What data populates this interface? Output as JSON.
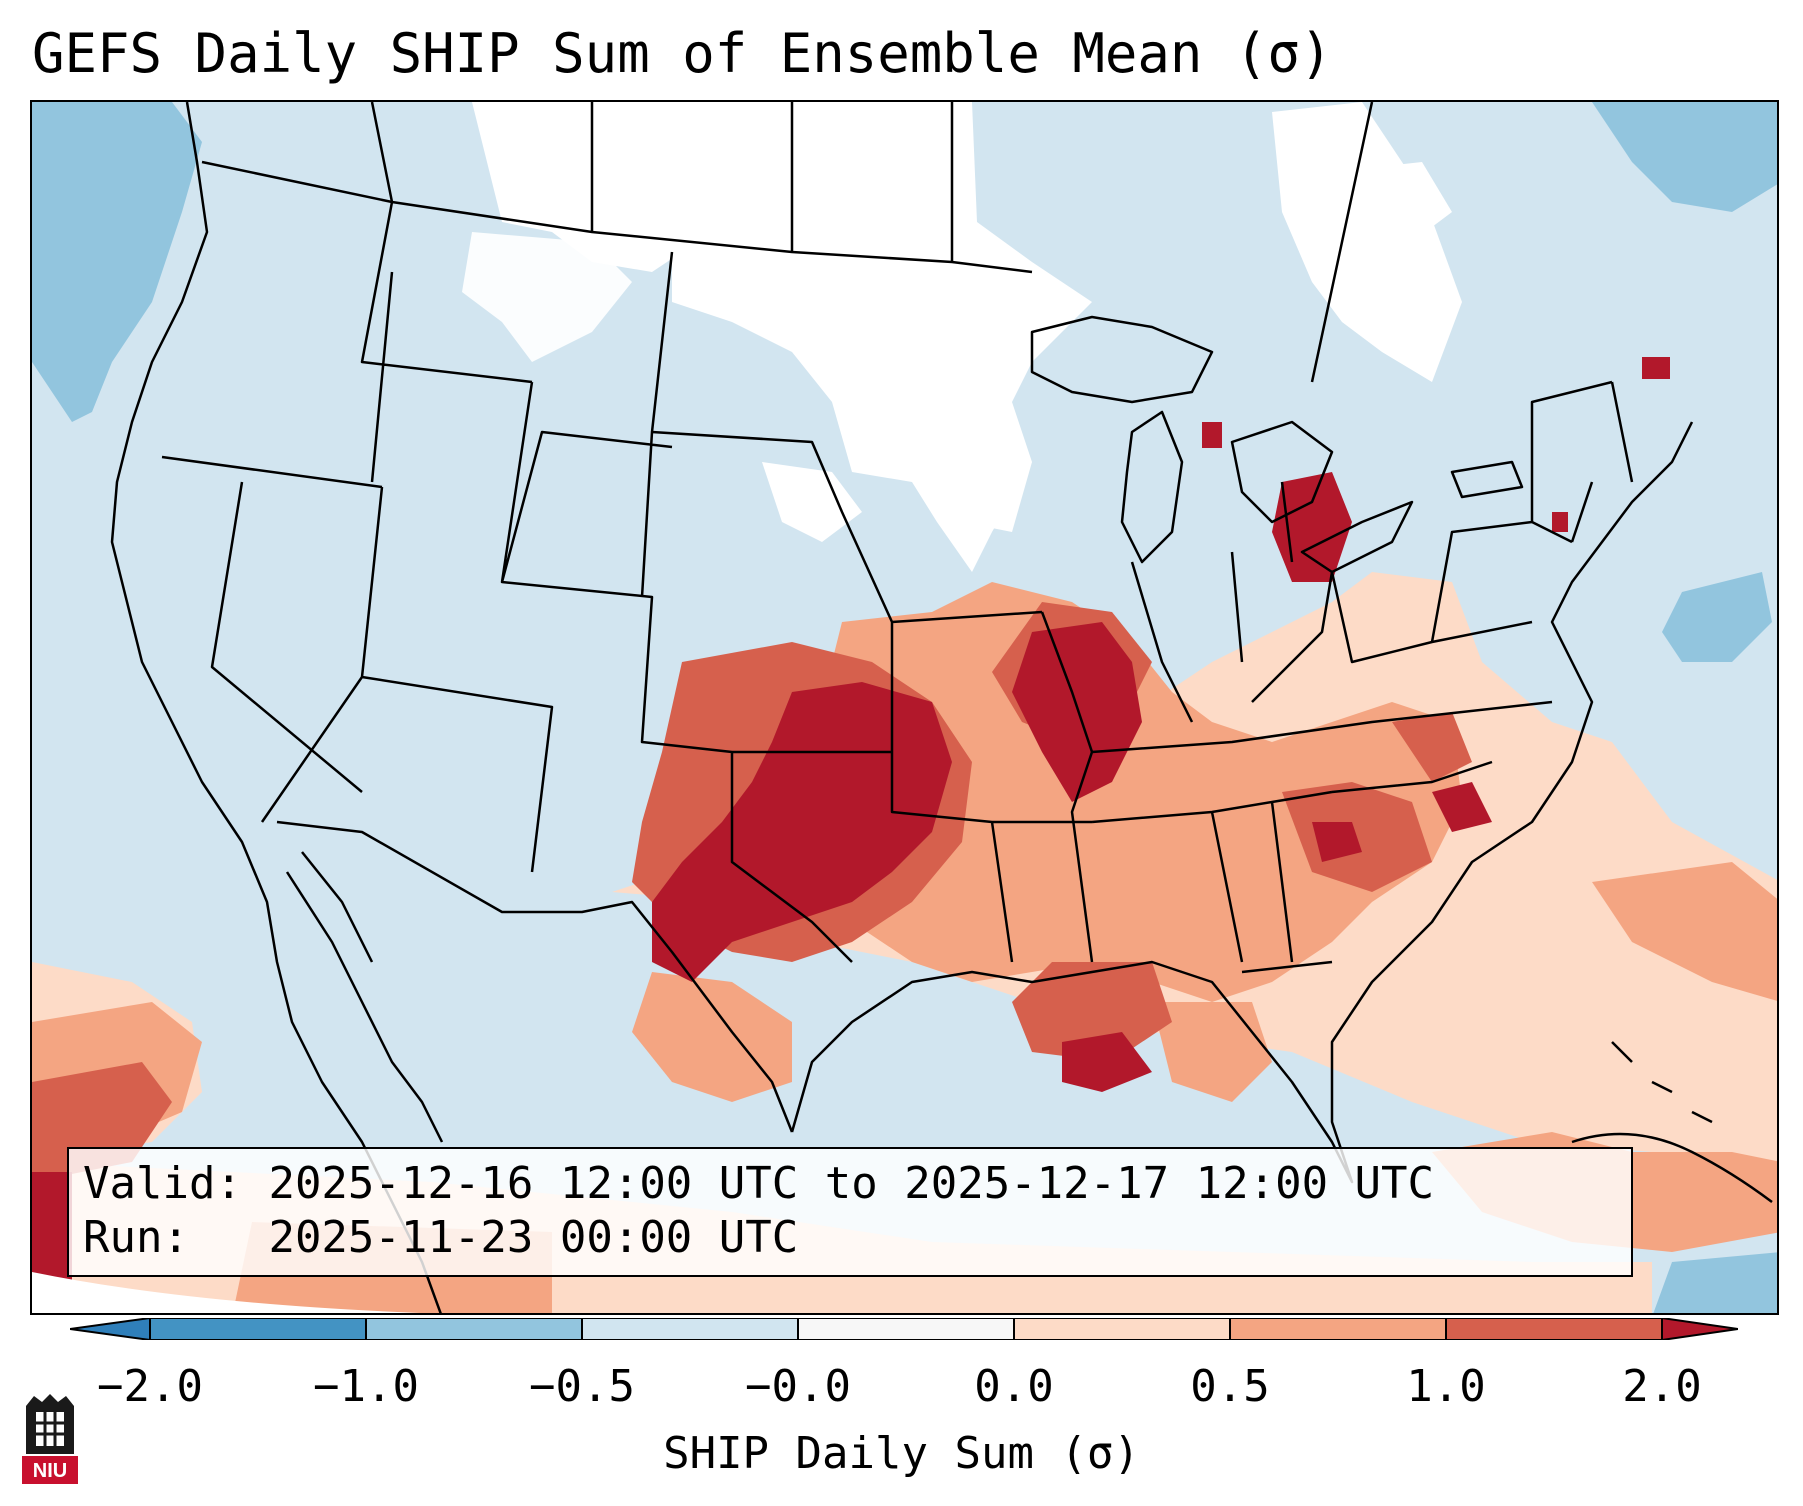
{
  "title": "GEFS Daily SHIP Sum of Ensemble Mean (σ)",
  "info": {
    "valid_label": "Valid:",
    "valid_value": "2025-12-16 12:00 UTC to 2025-12-17 12:00 UTC",
    "run_label": "Run:",
    "run_value": "2025-11-23 00:00 UTC"
  },
  "colorbar": {
    "label": "SHIP Daily Sum (σ)",
    "ticks": [
      "−2.0",
      "−1.0",
      "−0.5",
      "−0.0",
      "0.0",
      "0.5",
      "1.0",
      "2.0"
    ],
    "colors": {
      "extend_low": "#2f7fba",
      "bin_m2_m1": "#4393c3",
      "bin_m1_m05": "#92c5de",
      "bin_m05_0": "#d1e5f0",
      "bin_0_0": "#f7f7f7",
      "bin_0_05": "#fddbc7",
      "bin_05_1": "#f4a582",
      "bin_1_2": "#d6604d",
      "extend_high": "#b2182b"
    }
  },
  "legend_colors": {
    "ocean_background": "#d2e5f0",
    "neutral": "#ffffff",
    "light_blue": "#92c5de",
    "light_red": "#fddbc7",
    "mid_red": "#f4a582",
    "red": "#d6604d",
    "dark_red": "#b2182b"
  },
  "logo": {
    "text": "NIU"
  }
}
